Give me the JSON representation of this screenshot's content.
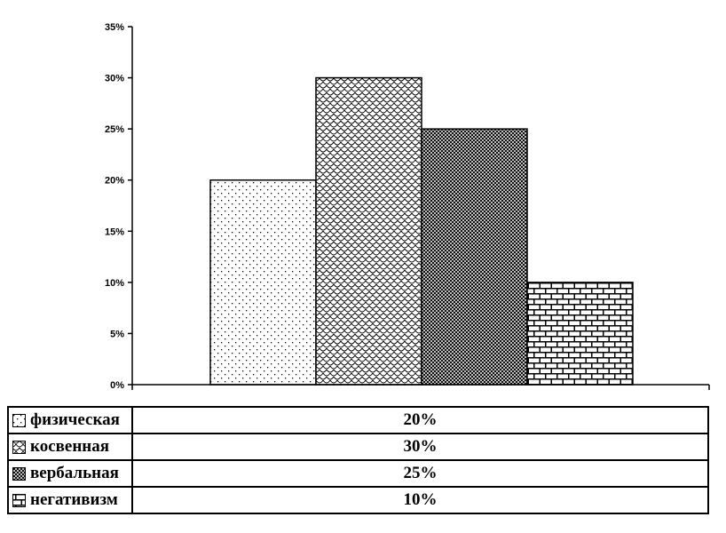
{
  "chart_data": {
    "type": "bar",
    "title": "",
    "xlabel": "",
    "ylabel": "",
    "categories": [
      "физическая",
      "косвенная",
      "вербальная",
      "негативизм"
    ],
    "values": [
      20,
      30,
      25,
      10
    ],
    "unit": "%",
    "ylim": [
      0,
      35
    ],
    "ytick_step": 5,
    "ytick_labels": [
      "0%",
      "5%",
      "10%",
      "15%",
      "20%",
      "25%",
      "30%",
      "35%"
    ],
    "patterns": [
      "dots",
      "scales",
      "checker",
      "bricks"
    ],
    "grid": "off",
    "legend_position": "bottom-table"
  },
  "legend_table": {
    "rows": [
      {
        "label": "физическая",
        "value": "20%",
        "swatch": "dots"
      },
      {
        "label": "косвенная",
        "value": "30%",
        "swatch": "scales"
      },
      {
        "label": "вербальная",
        "value": "25%",
        "swatch": "checker"
      },
      {
        "label": "негативизм",
        "value": "10%",
        "swatch": "bricks"
      }
    ]
  },
  "colors": {
    "foreground": "#000000",
    "background": "#ffffff"
  }
}
